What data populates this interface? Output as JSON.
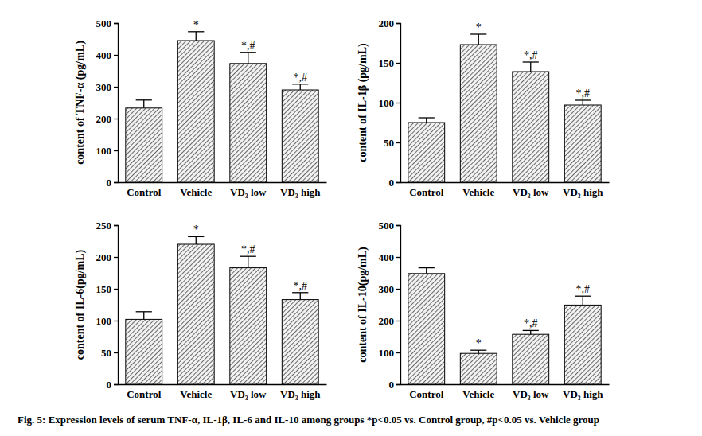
{
  "chart_data": [
    {
      "type": "bar",
      "y_label": "content of TNF-α (pg/mL)",
      "categories": [
        "Control",
        "Vehicle",
        "VD₃ low",
        "VD₃ high"
      ],
      "values": [
        233,
        445,
        373,
        290
      ],
      "errors": [
        25,
        28,
        35,
        18
      ],
      "annotations": [
        null,
        "*",
        "*,#",
        "*,#"
      ],
      "color": "#444444",
      "ylim": [
        0,
        500
      ],
      "yticks": [
        0,
        100,
        200,
        300,
        400,
        500
      ]
    },
    {
      "type": "bar",
      "y_label": "content of IL-1β (pg/mL)",
      "categories": [
        "Control",
        "Vehicle",
        "VD₃ low",
        "VD₃ high"
      ],
      "values": [
        75,
        173,
        139,
        97
      ],
      "errors": [
        6,
        13,
        12,
        6
      ],
      "annotations": [
        null,
        "*",
        "*,#",
        "*,#"
      ],
      "color": "#444444",
      "ylim": [
        0,
        200
      ],
      "yticks": [
        0,
        50,
        100,
        150,
        200
      ]
    },
    {
      "type": "bar",
      "y_label": "content of IL-6(pg/mL)",
      "categories": [
        "Control",
        "Vehicle",
        "VD₃ low",
        "VD₃ high"
      ],
      "values": [
        102,
        220,
        183,
        133
      ],
      "errors": [
        12,
        12,
        18,
        11
      ],
      "annotations": [
        null,
        "*",
        "*,#",
        "*,#"
      ],
      "color": "#444444",
      "ylim": [
        0,
        250
      ],
      "yticks": [
        0,
        50,
        100,
        150,
        200,
        250
      ]
    },
    {
      "type": "bar",
      "y_label": "content of IL-10(pg/mL)",
      "categories": [
        "Control",
        "Vehicle",
        "VD₃ low",
        "VD₃ high"
      ],
      "values": [
        348,
        97,
        157,
        249
      ],
      "errors": [
        18,
        10,
        12,
        28
      ],
      "annotations": [
        null,
        "*",
        "*,#",
        "*,#"
      ],
      "color": "#444444",
      "ylim": [
        0,
        500
      ],
      "yticks": [
        0,
        100,
        200,
        300,
        400,
        500
      ]
    }
  ],
  "caption": "Fig. 5: Expression levels of serum TNF-α, IL-1β, IL-6 and IL-10 among groups *p<0.05 vs. Control group, #p<0.05 vs. Vehicle group"
}
